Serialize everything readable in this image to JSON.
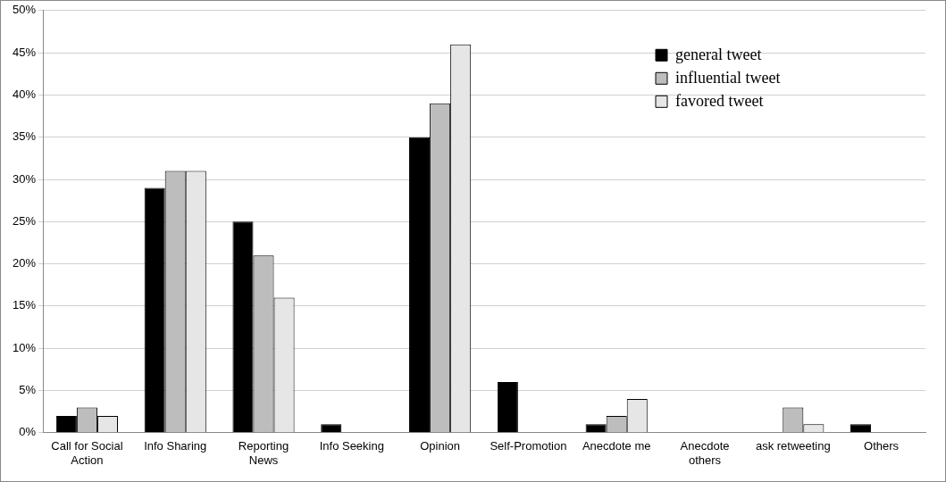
{
  "chart_data": {
    "type": "bar",
    "categories": [
      "Call for Social\nAction",
      "Info Sharing",
      "Reporting\nNews",
      "Info Seeking",
      "Opinion",
      "Self-Promotion",
      "Anecdote me",
      "Anecdote\nothers",
      "ask retweeting",
      "Others"
    ],
    "series": [
      {
        "name": "general tweet",
        "color": "#000000",
        "values": [
          2,
          29,
          25,
          1,
          35,
          6,
          1,
          0,
          0,
          1
        ]
      },
      {
        "name": "influential tweet",
        "color": "#bdbdbd",
        "values": [
          3,
          31,
          21,
          0,
          39,
          0,
          2,
          0,
          3,
          0
        ]
      },
      {
        "name": "favored tweet",
        "color": "#e6e6e6",
        "values": [
          2,
          31,
          16,
          0,
          46,
          0,
          4,
          0,
          1,
          0
        ]
      }
    ],
    "ylim": [
      0,
      50
    ],
    "yticks": [
      {
        "value": 0,
        "label": "0%"
      },
      {
        "value": 5,
        "label": "5%"
      },
      {
        "value": 10,
        "label": "10%"
      },
      {
        "value": 15,
        "label": "15%"
      },
      {
        "value": 20,
        "label": "20%"
      },
      {
        "value": 25,
        "label": "25%"
      },
      {
        "value": 30,
        "label": "30%"
      },
      {
        "value": 35,
        "label": "35%"
      },
      {
        "value": 40,
        "label": "40%"
      },
      {
        "value": 45,
        "label": "45%"
      },
      {
        "value": 50,
        "label": "50%"
      }
    ],
    "grid": "y",
    "legend": "top right"
  }
}
